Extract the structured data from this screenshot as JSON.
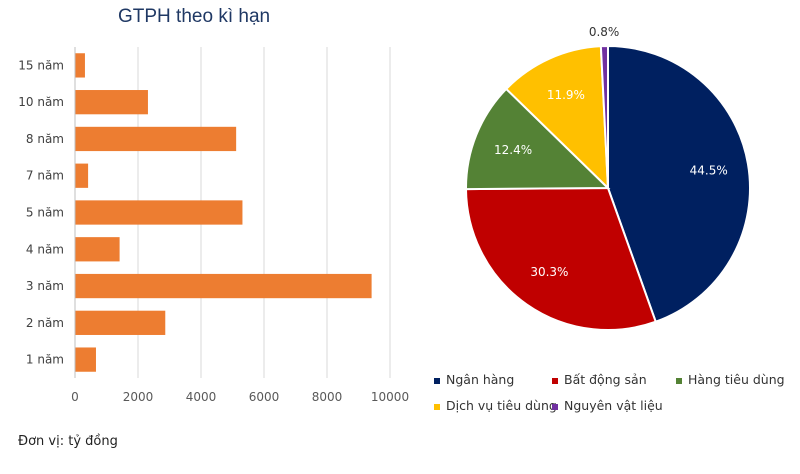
{
  "unit_note": "Đơn vị: tỷ đồng",
  "chart_data": [
    {
      "type": "bar",
      "orientation": "horizontal",
      "title": "GTPH theo kì hạn",
      "categories": [
        "1 năm",
        "2 năm",
        "3 năm",
        "4 năm",
        "5 năm",
        "7 năm",
        "8 năm",
        "10 năm",
        "15 năm"
      ],
      "values": [
        650,
        2850,
        9400,
        1400,
        5300,
        400,
        5100,
        2300,
        300
      ],
      "xlim": [
        0,
        10000
      ],
      "xticks": [
        "0",
        "2000",
        "4000",
        "6000",
        "8000",
        "10000"
      ],
      "xtick_values": [
        0,
        2000,
        4000,
        6000,
        8000,
        10000
      ],
      "grid": true,
      "color": "#ed7d31"
    },
    {
      "type": "pie",
      "labels": [
        "Ngân hàng",
        "Bất động sản",
        "Hàng tiêu dùng",
        "Dịch vụ tiêu dùng",
        "Nguyên vật liệu"
      ],
      "values": [
        44.5,
        30.3,
        12.4,
        11.9,
        0.8
      ],
      "value_labels": [
        "44.5%",
        "30.3%",
        "12.4%",
        "11.9%",
        "0.8%"
      ],
      "colors": [
        "#002060",
        "#c00000",
        "#548235",
        "#ffc000",
        "#7030a0"
      ],
      "label_colors": [
        "#ffffff",
        "#ffffff",
        "#ffffff",
        "#ffffff",
        "#333333"
      ],
      "legend": "bottom"
    }
  ]
}
